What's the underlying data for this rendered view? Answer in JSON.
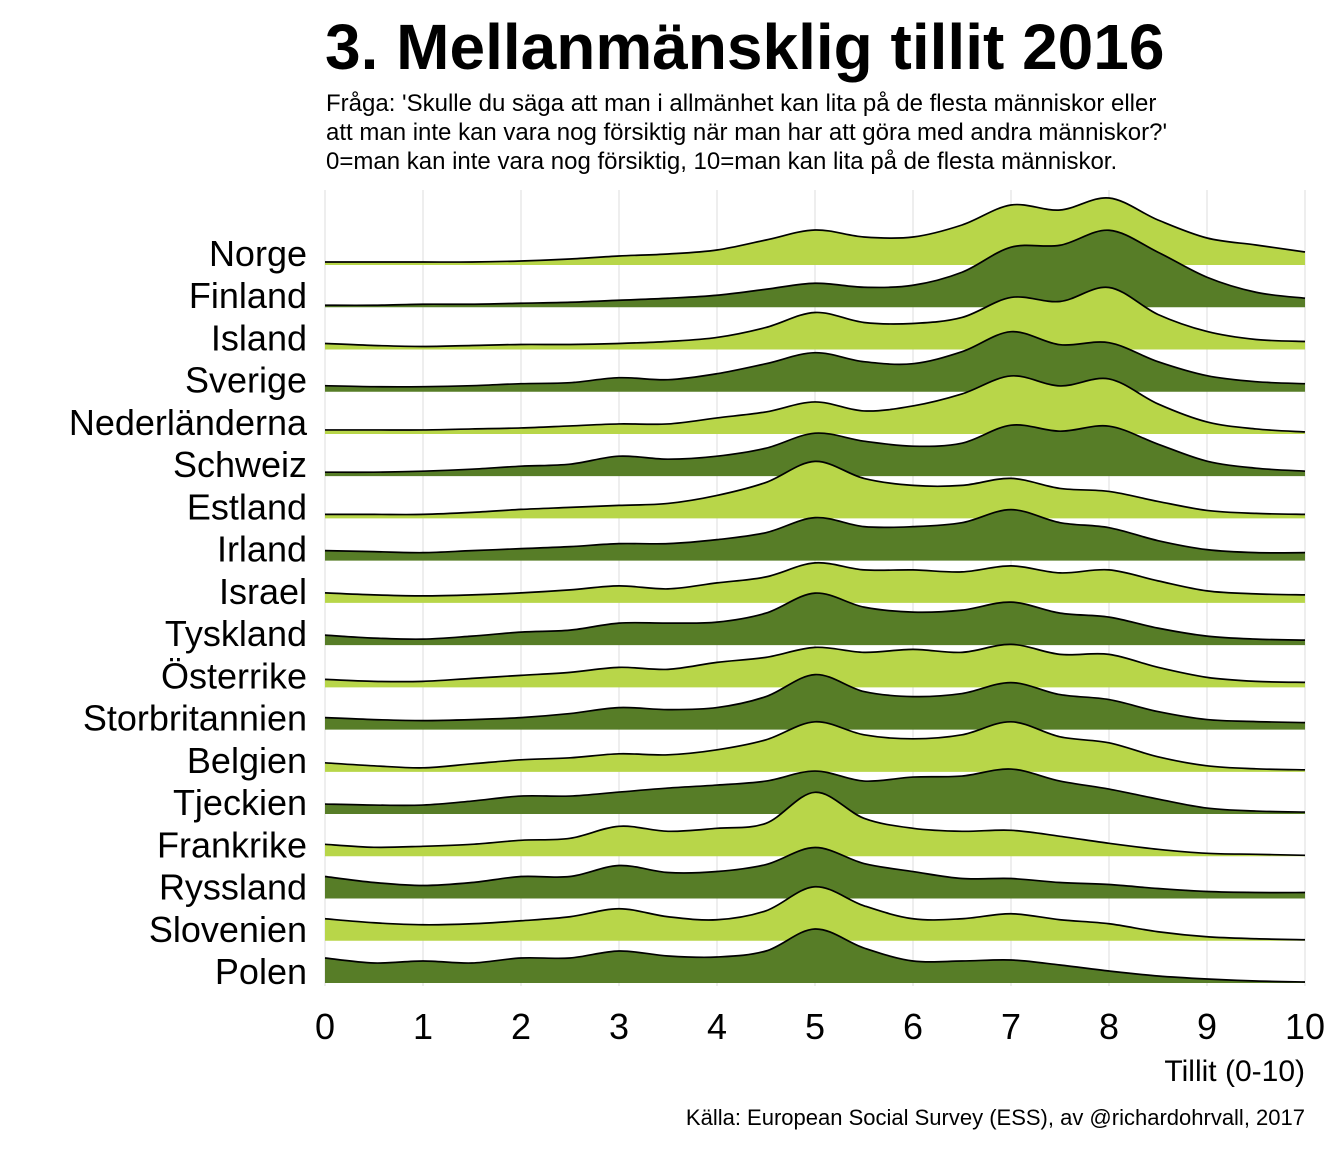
{
  "chart_data": {
    "type": "area",
    "title": "3. Mellanmänsklig tillit 2016",
    "subtitle": [
      "Fråga: 'Skulle du säga att man i allmänhet kan lita på de flesta människor eller",
      "att man inte kan vara nog försiktig när man har att göra med andra människor?'",
      "0=man kan inte vara nog försiktig, 10=man kan lita på de flesta människor."
    ],
    "xlabel": "Tillit (0-10)",
    "caption": "Källa: European Social Survey (ESS), av @richardohrvall, 2017",
    "xlim": [
      0,
      10
    ],
    "x_ticks": [
      0,
      1,
      2,
      3,
      4,
      5,
      6,
      7,
      8,
      9,
      10
    ],
    "grid": true,
    "colors": [
      "#b8d649",
      "#577d27"
    ],
    "outline_color": "#000000",
    "x": [
      0,
      0.5,
      1,
      1.5,
      2,
      2.5,
      3,
      3.5,
      4,
      4.5,
      5,
      5.5,
      6,
      6.5,
      7,
      7.5,
      8,
      8.5,
      9,
      9.5,
      10
    ],
    "series": [
      {
        "name": "Norge",
        "values": [
          0.012,
          0.012,
          0.012,
          0.012,
          0.016,
          0.024,
          0.036,
          0.044,
          0.06,
          0.1,
          0.14,
          0.112,
          0.112,
          0.16,
          0.24,
          0.22,
          0.268,
          0.18,
          0.108,
          0.08,
          0.052
        ]
      },
      {
        "name": "Finland",
        "values": [
          0.008,
          0.008,
          0.012,
          0.012,
          0.016,
          0.02,
          0.028,
          0.036,
          0.048,
          0.072,
          0.096,
          0.08,
          0.088,
          0.14,
          0.24,
          0.248,
          0.308,
          0.22,
          0.12,
          0.06,
          0.036
        ]
      },
      {
        "name": "Island",
        "values": [
          0.024,
          0.016,
          0.012,
          0.016,
          0.02,
          0.02,
          0.024,
          0.032,
          0.048,
          0.088,
          0.148,
          0.108,
          0.104,
          0.128,
          0.208,
          0.192,
          0.248,
          0.14,
          0.072,
          0.04,
          0.032
        ]
      },
      {
        "name": "Sverige",
        "values": [
          0.024,
          0.02,
          0.02,
          0.024,
          0.032,
          0.036,
          0.056,
          0.048,
          0.072,
          0.112,
          0.156,
          0.12,
          0.112,
          0.16,
          0.24,
          0.188,
          0.196,
          0.12,
          0.064,
          0.04,
          0.032
        ]
      },
      {
        "name": "Nederländerna",
        "values": [
          0.016,
          0.016,
          0.016,
          0.02,
          0.024,
          0.032,
          0.04,
          0.04,
          0.064,
          0.088,
          0.128,
          0.092,
          0.112,
          0.16,
          0.232,
          0.192,
          0.22,
          0.12,
          0.048,
          0.02,
          0.008
        ]
      },
      {
        "name": "Schweiz",
        "values": [
          0.016,
          0.016,
          0.02,
          0.028,
          0.04,
          0.048,
          0.08,
          0.068,
          0.08,
          0.112,
          0.172,
          0.14,
          0.12,
          0.132,
          0.204,
          0.18,
          0.2,
          0.128,
          0.06,
          0.032,
          0.02
        ]
      },
      {
        "name": "Estland",
        "values": [
          0.016,
          0.016,
          0.016,
          0.024,
          0.036,
          0.044,
          0.052,
          0.06,
          0.092,
          0.144,
          0.228,
          0.16,
          0.132,
          0.132,
          0.16,
          0.12,
          0.108,
          0.068,
          0.032,
          0.02,
          0.016
        ]
      },
      {
        "name": "Irland",
        "values": [
          0.04,
          0.036,
          0.032,
          0.04,
          0.048,
          0.056,
          0.068,
          0.068,
          0.084,
          0.112,
          0.172,
          0.136,
          0.136,
          0.152,
          0.204,
          0.152,
          0.132,
          0.08,
          0.044,
          0.032,
          0.032
        ]
      },
      {
        "name": "Israel",
        "values": [
          0.04,
          0.032,
          0.028,
          0.032,
          0.04,
          0.052,
          0.068,
          0.056,
          0.08,
          0.104,
          0.16,
          0.132,
          0.132,
          0.124,
          0.148,
          0.12,
          0.132,
          0.088,
          0.048,
          0.036,
          0.032
        ]
      },
      {
        "name": "Tyskland",
        "values": [
          0.04,
          0.028,
          0.024,
          0.036,
          0.052,
          0.06,
          0.088,
          0.088,
          0.092,
          0.128,
          0.208,
          0.152,
          0.132,
          0.14,
          0.172,
          0.128,
          0.112,
          0.068,
          0.036,
          0.024,
          0.02
        ]
      },
      {
        "name": "Österrike",
        "values": [
          0.032,
          0.024,
          0.024,
          0.036,
          0.048,
          0.06,
          0.08,
          0.072,
          0.1,
          0.12,
          0.16,
          0.14,
          0.152,
          0.14,
          0.172,
          0.132,
          0.132,
          0.08,
          0.04,
          0.024,
          0.02
        ]
      },
      {
        "name": "Storbritannien",
        "values": [
          0.048,
          0.04,
          0.036,
          0.04,
          0.048,
          0.064,
          0.088,
          0.08,
          0.088,
          0.132,
          0.22,
          0.152,
          0.132,
          0.144,
          0.188,
          0.14,
          0.12,
          0.072,
          0.04,
          0.032,
          0.028
        ]
      },
      {
        "name": "Belgien",
        "values": [
          0.036,
          0.024,
          0.016,
          0.032,
          0.048,
          0.056,
          0.072,
          0.068,
          0.088,
          0.128,
          0.2,
          0.148,
          0.132,
          0.148,
          0.2,
          0.14,
          0.116,
          0.06,
          0.024,
          0.012,
          0.008
        ]
      },
      {
        "name": "Tjeckien",
        "values": [
          0.04,
          0.036,
          0.036,
          0.052,
          0.072,
          0.072,
          0.088,
          0.104,
          0.116,
          0.132,
          0.172,
          0.132,
          0.148,
          0.152,
          0.18,
          0.132,
          0.1,
          0.06,
          0.024,
          0.012,
          0.008
        ]
      },
      {
        "name": "Frankrike",
        "values": [
          0.048,
          0.036,
          0.04,
          0.048,
          0.064,
          0.072,
          0.12,
          0.1,
          0.112,
          0.132,
          0.256,
          0.152,
          0.112,
          0.1,
          0.104,
          0.08,
          0.052,
          0.028,
          0.012,
          0.008,
          0.004
        ]
      },
      {
        "name": "Ryssland",
        "values": [
          0.088,
          0.064,
          0.052,
          0.064,
          0.088,
          0.088,
          0.132,
          0.104,
          0.108,
          0.136,
          0.204,
          0.14,
          0.108,
          0.08,
          0.08,
          0.064,
          0.056,
          0.04,
          0.028,
          0.024,
          0.024
        ]
      },
      {
        "name": "Slovenien",
        "values": [
          0.088,
          0.072,
          0.064,
          0.068,
          0.08,
          0.096,
          0.128,
          0.096,
          0.084,
          0.12,
          0.216,
          0.14,
          0.088,
          0.088,
          0.108,
          0.084,
          0.068,
          0.036,
          0.016,
          0.008,
          0.004
        ]
      },
      {
        "name": "Polen",
        "values": [
          0.1,
          0.08,
          0.088,
          0.08,
          0.1,
          0.1,
          0.128,
          0.108,
          0.104,
          0.128,
          0.216,
          0.14,
          0.088,
          0.088,
          0.092,
          0.072,
          0.048,
          0.028,
          0.016,
          0.008,
          0.004
        ]
      }
    ]
  }
}
